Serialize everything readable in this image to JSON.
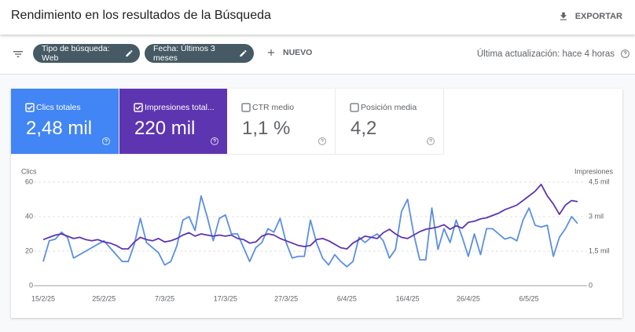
{
  "header": {
    "title": "Rendimiento en los resultados de la Búsqueda",
    "export": "EXPORTAR"
  },
  "filters": {
    "chips": [
      "Tipo de búsqueda: Web",
      "Fecha: Últimos 3 meses"
    ],
    "new": "NUEVO",
    "updated": "Última actualización: hace 4 horas"
  },
  "metrics": [
    {
      "label": "Clics totales",
      "value": "2,48 mil",
      "checked": true,
      "color": "#4285f4"
    },
    {
      "label": "Impresiones total...",
      "value": "220 mil",
      "checked": true,
      "color": "#5e35b1"
    },
    {
      "label": "CTR medio",
      "value": "1,1 %",
      "checked": false,
      "color": "#ffffff"
    },
    {
      "label": "Posición media",
      "value": "4,2",
      "checked": false,
      "color": "#ffffff"
    }
  ],
  "chart_data": {
    "type": "line",
    "ylabel": "Clics",
    "y2label": "Impresiones",
    "categories": [
      "15/2/25",
      null,
      null,
      null,
      null,
      null,
      null,
      null,
      null,
      null,
      "25/2/25",
      null,
      null,
      null,
      null,
      null,
      null,
      null,
      null,
      null,
      "7/3/25",
      null,
      null,
      null,
      null,
      null,
      null,
      null,
      null,
      null,
      "17/3/25",
      null,
      null,
      null,
      null,
      null,
      null,
      null,
      null,
      null,
      "27/3/25",
      null,
      null,
      null,
      null,
      null,
      null,
      null,
      null,
      null,
      "6/4/25",
      null,
      null,
      null,
      null,
      null,
      null,
      null,
      null,
      null,
      "16/4/25",
      null,
      null,
      null,
      null,
      null,
      null,
      null,
      null,
      null,
      "26/4/25",
      null,
      null,
      null,
      null,
      null,
      null,
      null,
      null,
      null,
      "6/5/25",
      null,
      null,
      null,
      null,
      null,
      null,
      null,
      null
    ],
    "series": [
      {
        "color": "#5b8fe0",
        "values": [
          14,
          26,
          27,
          31,
          28,
          16,
          18,
          20,
          22,
          24,
          26,
          22,
          18,
          14,
          14,
          24,
          39,
          25,
          22,
          19,
          12,
          14,
          23,
          38,
          40,
          32,
          52,
          40,
          26,
          39,
          41,
          30,
          30,
          22,
          14,
          22,
          25,
          33,
          31,
          39,
          25,
          16,
          17,
          17,
          38,
          25,
          16,
          12,
          18,
          14,
          11,
          14,
          28,
          25,
          28,
          30,
          26,
          16,
          21,
          43,
          50,
          30,
          15,
          15,
          45,
          21,
          33,
          25,
          38,
          28,
          17,
          30,
          18,
          33,
          33,
          30,
          27,
          28,
          26,
          38,
          45,
          35,
          34,
          35,
          17,
          28,
          33,
          40,
          36
        ]
      },
      {
        "color": "#5e35b1",
        "axis": "y2",
        "values": [
          2000,
          2100,
          2200,
          2250,
          2150,
          2050,
          2100,
          2000,
          1950,
          2000,
          1900,
          1850,
          1750,
          1600,
          1600,
          1900,
          2100,
          2000,
          1950,
          2050,
          1900,
          1950,
          2050,
          2200,
          2300,
          2150,
          2250,
          2200,
          2150,
          2200,
          2150,
          2200,
          2050,
          2000,
          1850,
          1900,
          2150,
          2250,
          2200,
          2050,
          1950,
          1850,
          1750,
          1700,
          1750,
          2000,
          2050,
          1950,
          1800,
          1650,
          1600,
          1850,
          2000,
          2150,
          2100,
          2050,
          2300,
          2450,
          2250,
          2100,
          2050,
          2200,
          2350,
          2450,
          2500,
          2550,
          2650,
          2450,
          2600,
          2500,
          2750,
          2800,
          2900,
          2950,
          3050,
          3150,
          3300,
          3400,
          3500,
          3700,
          3900,
          4100,
          4400,
          3900,
          3550,
          3100,
          3500,
          3700,
          3650
        ]
      }
    ],
    "ylim": [
      0,
      60
    ],
    "yticks": [
      0,
      20,
      40,
      60
    ],
    "y2lim": [
      0,
      4500
    ],
    "y2ticks": [
      0,
      {
        "value": 1500,
        "label": "1,5 mil"
      },
      {
        "value": 3000,
        "label": "3 mil"
      },
      {
        "value": 4500,
        "label": "4,5 mil"
      }
    ],
    "grid": true
  }
}
